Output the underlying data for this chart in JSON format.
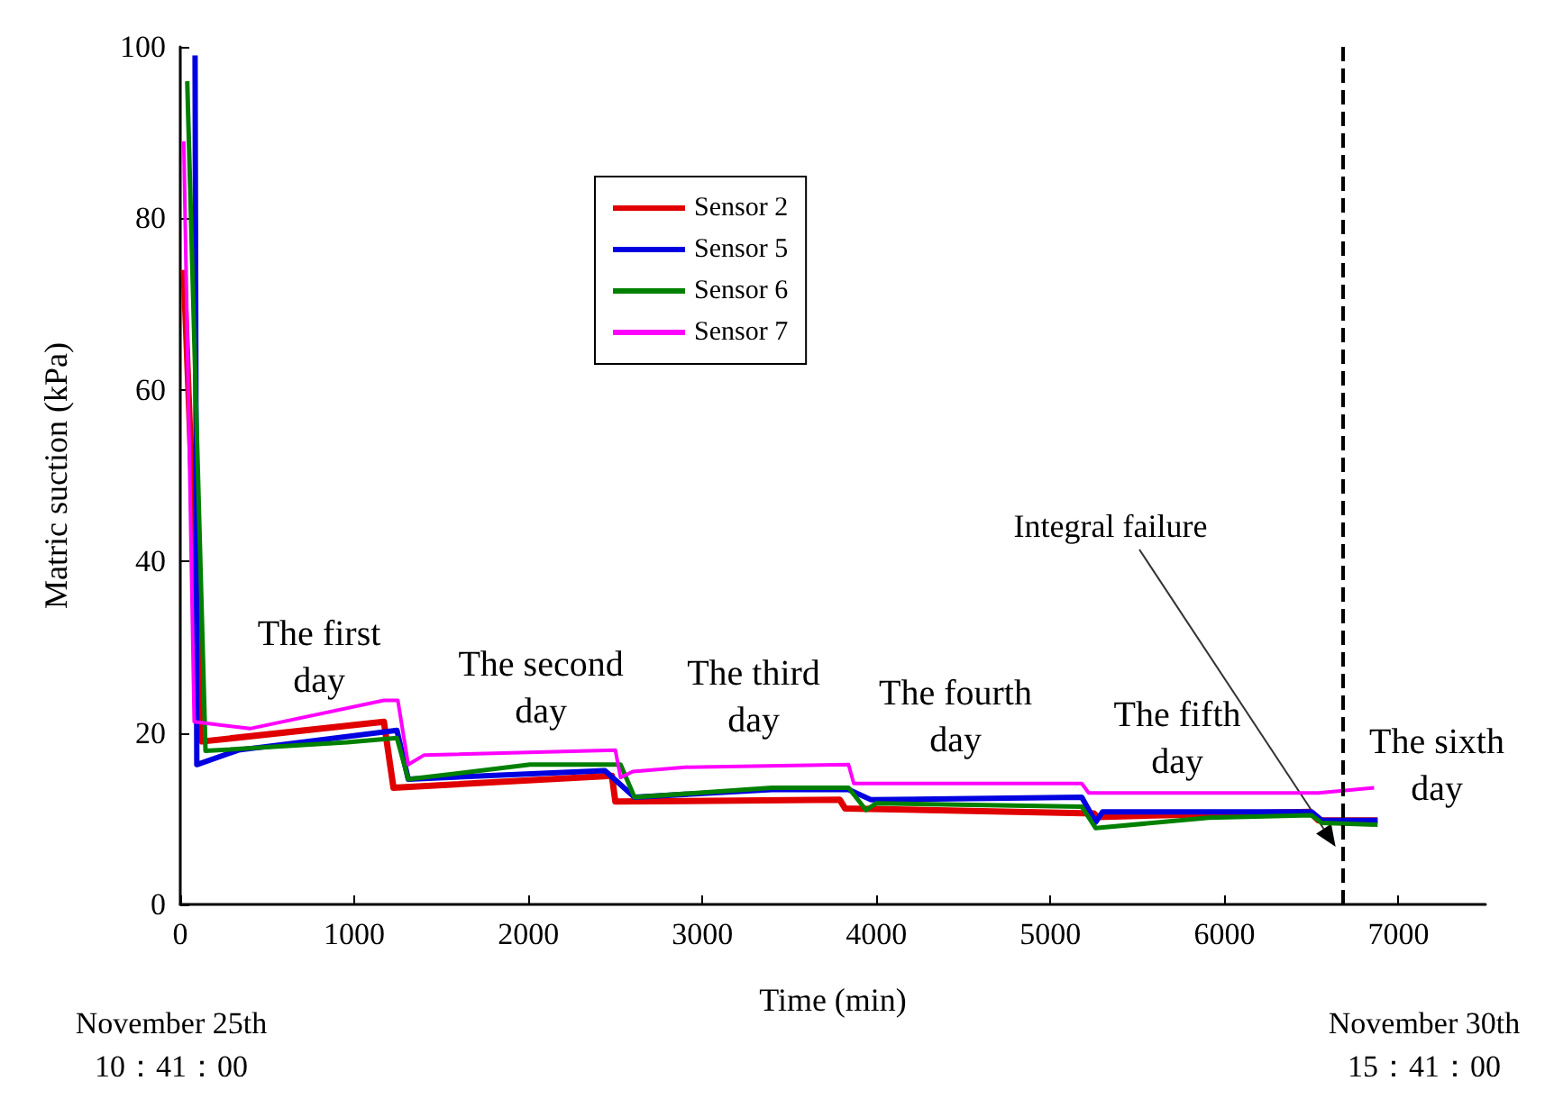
{
  "chart_data": {
    "type": "line",
    "xlabel": "Time (min)",
    "ylabel": "Matric suction (kPa)",
    "xlim": [
      0,
      7500
    ],
    "xticks": [
      0,
      1000,
      2000,
      3000,
      4000,
      5000,
      6000,
      7000
    ],
    "ylim": [
      0,
      100
    ],
    "yticks": [
      0,
      20,
      40,
      60,
      80,
      100
    ],
    "grid": false,
    "legend": "top",
    "marker": "none",
    "line_style": "solid",
    "series": [
      {
        "name": "Sensor 2",
        "color": "#e00000",
        "x": [
          20,
          125,
          1170,
          1225,
          2480,
          2500,
          3790,
          3820,
          5250,
          5270,
          6490,
          6540,
          6880
        ],
        "values": [
          74,
          19,
          21.3,
          13.6,
          15,
          12,
          12.2,
          11.2,
          10.6,
          10.2,
          10.8,
          9.8,
          9.8
        ]
      },
      {
        "name": "Sensor 5",
        "color": "#0000e0",
        "x": [
          85,
          95,
          335,
          1245,
          1310,
          2440,
          2610,
          3400,
          3840,
          3970,
          5180,
          5260,
          5300,
          6500,
          6560,
          6880
        ],
        "values": [
          99,
          16.3,
          18,
          20.3,
          14.6,
          15.6,
          12.5,
          13.4,
          13.4,
          12.2,
          12.5,
          9.6,
          10.8,
          10.8,
          9.8,
          9.8
        ]
      },
      {
        "name": "Sensor 6",
        "color": "#008000",
        "x": [
          40,
          145,
          960,
          1245,
          1310,
          2010,
          2530,
          2610,
          3400,
          3840,
          3940,
          4000,
          5180,
          5260,
          5910,
          6500,
          6560,
          6880
        ],
        "values": [
          96,
          17.9,
          18.9,
          19.4,
          14.6,
          16.3,
          16.3,
          12.5,
          13.6,
          13.6,
          11,
          11.8,
          11.4,
          8.9,
          10.1,
          10.4,
          9.5,
          9.3
        ]
      },
      {
        "name": "Sensor 7",
        "color": "#ff00ff",
        "x": [
          20,
          80,
          400,
          1170,
          1250,
          1310,
          1400,
          2500,
          2530,
          2600,
          2900,
          3840,
          3870,
          5180,
          5220,
          6540,
          6860
        ],
        "values": [
          89,
          21.3,
          20.5,
          23.8,
          23.8,
          16.3,
          17.4,
          18,
          14.8,
          15.5,
          16,
          16.3,
          14.1,
          14.1,
          13,
          13,
          13.6
        ]
      }
    ],
    "ref_lines": [
      {
        "axis": "x",
        "value": 6680,
        "label": null,
        "color": "#000000",
        "line_style": "dashed"
      }
    ],
    "annotations": [
      "The first\nday",
      "The second\nday",
      "The third\nday",
      "The fourth\nday",
      "The fifth\nday",
      "The sixth\nday",
      "Integral failure",
      "November 25th\n10：41：00",
      "November 30th\n15：41：00"
    ]
  }
}
